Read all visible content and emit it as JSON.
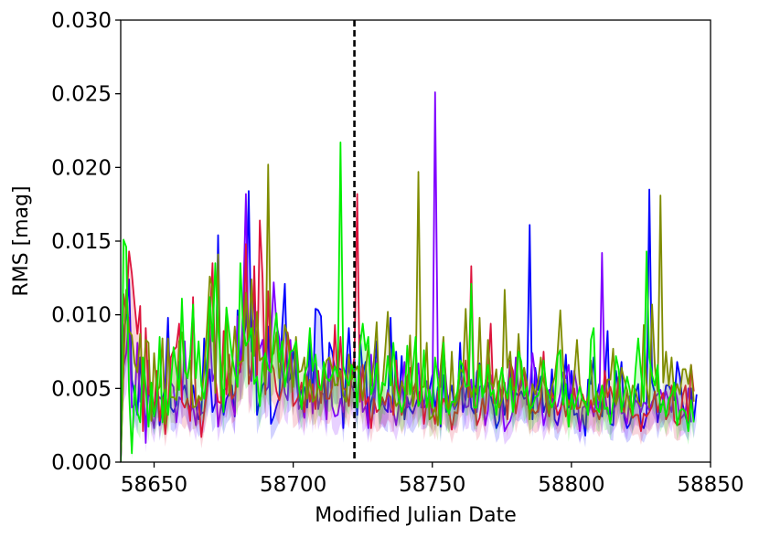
{
  "chart_data": {
    "type": "line",
    "title": "",
    "xlabel": "Modified Julian Date",
    "ylabel": "RMS [mag]",
    "xlim": [
      58638,
      58850
    ],
    "ylim": [
      0.0,
      0.03
    ],
    "xticks": [
      58650,
      58700,
      58750,
      58800,
      58850
    ],
    "xtick_labels": [
      "58650",
      "58700",
      "58750",
      "58800",
      "58850"
    ],
    "yticks": [
      0.0,
      0.005,
      0.01,
      0.015,
      0.02,
      0.025,
      0.03
    ],
    "ytick_labels": [
      "0.000",
      "0.005",
      "0.010",
      "0.015",
      "0.020",
      "0.025",
      "0.030"
    ],
    "grid": false,
    "legend": "none",
    "vline": {
      "x": 58722,
      "style": "dashed",
      "color": "#000000"
    },
    "x_step": 1,
    "series": [
      {
        "color": "#0000ff",
        "values": [
          0.0,
          0.0087,
          0.0099,
          0.0124,
          0.0056,
          0.0045,
          0.0032,
          0.0071,
          0.004,
          0.0026,
          0.0049,
          0.0041,
          0.0031,
          0.0058,
          0.0025,
          0.0041,
          0.0053,
          0.0098,
          0.0037,
          0.0034,
          0.0039,
          0.0068,
          0.0048,
          0.0052,
          0.0043,
          0.0033,
          0.0052,
          0.0039,
          0.0029,
          0.0034,
          0.0084,
          0.0049,
          0.0063,
          0.0034,
          0.004,
          0.0154,
          0.0044,
          0.0032,
          0.0043,
          0.0047,
          0.0052,
          0.0031,
          0.0103,
          0.0065,
          0.0082,
          0.0093,
          0.0184,
          0.0075,
          0.0124,
          0.0032,
          0.0043,
          0.0052,
          0.0055,
          0.0092,
          0.0026,
          0.0031,
          0.0038,
          0.0044,
          0.0091,
          0.0121,
          0.0054,
          0.0057,
          0.0076,
          0.0059,
          0.0041,
          0.0049,
          0.0051,
          0.0037,
          0.0083,
          0.0041,
          0.0104,
          0.0103,
          0.0099,
          0.0053,
          0.0033,
          0.0081,
          0.0075,
          0.0063,
          0.0064,
          0.0063,
          0.0023,
          0.0063,
          0.0091,
          0.0057,
          0.007,
          0.0032,
          0.0086,
          0.0059,
          0.0068,
          0.0026,
          0.0041,
          0.0048,
          0.0082,
          0.0043,
          0.0042,
          0.0036,
          0.0034,
          0.0098,
          0.0034,
          0.0075,
          0.0039,
          0.0072,
          0.0029,
          0.0044,
          0.0036,
          0.0033,
          0.0039,
          0.0045,
          0.0051,
          0.0037,
          0.0039,
          0.0049,
          0.0059,
          0.0035,
          0.0051,
          0.0024,
          0.0059,
          0.0034,
          0.0044,
          0.0052,
          0.0036,
          0.004,
          0.0081,
          0.0034,
          0.0043,
          0.0064,
          0.0037,
          0.0033,
          0.0061,
          0.0067,
          0.0049,
          0.0048,
          0.0054,
          0.0045,
          0.0037,
          0.0023,
          0.0028,
          0.0049,
          0.0032,
          0.0046,
          0.0069,
          0.0038,
          0.0047,
          0.0045,
          0.0048,
          0.0043,
          0.0044,
          0.0161,
          0.0029,
          0.0064,
          0.0049,
          0.0058,
          0.0034,
          0.0041,
          0.0035,
          0.0063,
          0.0029,
          0.0025,
          0.0035,
          0.0046,
          0.0073,
          0.0037,
          0.0062,
          0.0032,
          0.0033,
          0.0023,
          0.0032,
          0.0018,
          0.0056,
          0.0053,
          0.0071,
          0.0043,
          0.0053,
          0.0031,
          0.0056,
          0.0089,
          0.0026,
          0.0025,
          0.0062,
          0.0048,
          0.0068,
          0.003,
          0.0023,
          0.0026,
          0.0034,
          0.0046,
          0.0053,
          0.0026,
          0.0023,
          0.0031,
          0.0185,
          0.0054,
          0.0047,
          0.0027,
          0.0039,
          0.0039,
          0.0052,
          0.0052,
          0.0048,
          0.0042,
          0.0068,
          0.0058,
          0.0039,
          0.0031,
          0.0025,
          0.005,
          0.0028,
          0.0046
        ]
      },
      {
        "color": "#7f00ff",
        "values": [
          0.0,
          0.0065,
          0.0074,
          0.0098,
          0.0037,
          0.0039,
          0.0081,
          0.0041,
          0.0064,
          0.0013,
          0.0069,
          0.0034,
          0.0023,
          0.0041,
          0.0044,
          0.0042,
          0.0041,
          0.0084,
          0.0054,
          0.0051,
          0.0027,
          0.0044,
          0.0042,
          0.0082,
          0.004,
          0.0034,
          0.0038,
          0.0025,
          0.0044,
          0.0033,
          0.0034,
          0.0058,
          0.0092,
          0.0055,
          0.0062,
          0.0024,
          0.0038,
          0.0049,
          0.005,
          0.006,
          0.0041,
          0.0032,
          0.0099,
          0.0061,
          0.0105,
          0.0182,
          0.0066,
          0.0055,
          0.0096,
          0.0085,
          0.0077,
          0.0083,
          0.0048,
          0.0051,
          0.0085,
          0.0122,
          0.0094,
          0.0084,
          0.0062,
          0.0047,
          0.0042,
          0.0083,
          0.0051,
          0.0076,
          0.0036,
          0.004,
          0.003,
          0.0059,
          0.0066,
          0.0033,
          0.0067,
          0.0036,
          0.0047,
          0.0046,
          0.0029,
          0.0071,
          0.0038,
          0.0031,
          0.0032,
          0.0043,
          0.0034,
          0.0048,
          0.0066,
          0.0052,
          0.0047,
          0.0042,
          0.0065,
          0.0034,
          0.0038,
          0.0023,
          0.0073,
          0.0033,
          0.0068,
          0.0037,
          0.004,
          0.0038,
          0.0049,
          0.0034,
          0.0035,
          0.0025,
          0.0039,
          0.0048,
          0.0068,
          0.0037,
          0.0039,
          0.0046,
          0.0049,
          0.0067,
          0.0037,
          0.0037,
          0.0055,
          0.0042,
          0.0032,
          0.0251,
          0.0064,
          0.0051,
          0.0079,
          0.0054,
          0.0034,
          0.004,
          0.0036,
          0.0046,
          0.0058,
          0.0054,
          0.0037,
          0.0038,
          0.0056,
          0.0036,
          0.0034,
          0.0051,
          0.0052,
          0.0025,
          0.0035,
          0.0059,
          0.0044,
          0.004,
          0.0054,
          0.004,
          0.0021,
          0.0025,
          0.0028,
          0.0035,
          0.0071,
          0.0048,
          0.0052,
          0.0064,
          0.0039,
          0.0049,
          0.0074,
          0.0059,
          0.0034,
          0.0044,
          0.0025,
          0.0034,
          0.0049,
          0.0043,
          0.0036,
          0.0038,
          0.0047,
          0.0061,
          0.0057,
          0.0066,
          0.0042,
          0.0062,
          0.0051,
          0.0021,
          0.0037,
          0.0038,
          0.0033,
          0.0039,
          0.0031,
          0.0045,
          0.0035,
          0.0142,
          0.0047,
          0.0033,
          0.0031,
          0.0035,
          0.0039,
          0.0049,
          0.0033,
          0.0034,
          0.0026,
          0.0045,
          0.0035,
          0.0042,
          0.004,
          0.0034,
          0.0041,
          0.0039,
          0.0035,
          0.0041,
          0.0044,
          0.0046,
          0.0049,
          0.0041,
          0.0048,
          0.0041,
          0.0034,
          0.0051,
          0.0043,
          0.0029,
          0.0031,
          0.0034,
          0.005,
          0.0027
        ]
      },
      {
        "color": "#dc143c",
        "values": [
          0.0,
          0.0114,
          0.0101,
          0.0143,
          0.0128,
          0.0107,
          0.0087,
          0.0106,
          0.0021,
          0.0091,
          0.0046,
          0.0047,
          0.0036,
          0.0062,
          0.0028,
          0.0044,
          0.0019,
          0.0038,
          0.0071,
          0.0076,
          0.0078,
          0.0094,
          0.0041,
          0.0037,
          0.0043,
          0.0028,
          0.0112,
          0.0039,
          0.0043,
          0.0017,
          0.0034,
          0.0048,
          0.0093,
          0.0135,
          0.0058,
          0.0041,
          0.004,
          0.0089,
          0.0046,
          0.0073,
          0.0043,
          0.0046,
          0.0058,
          0.0064,
          0.0074,
          0.0148,
          0.0053,
          0.0062,
          0.0133,
          0.0059,
          0.0164,
          0.0125,
          0.0046,
          0.0116,
          0.0068,
          0.0063,
          0.0048,
          0.0042,
          0.005,
          0.0064,
          0.0088,
          0.0075,
          0.0038,
          0.0041,
          0.0045,
          0.0054,
          0.0034,
          0.0058,
          0.0041,
          0.0053,
          0.0036,
          0.0062,
          0.004,
          0.0065,
          0.0043,
          0.0043,
          0.0051,
          0.0093,
          0.0052,
          0.0085,
          0.005,
          0.0049,
          0.0038,
          0.006,
          0.0071,
          0.0182,
          0.0041,
          0.0066,
          0.0039,
          0.0044,
          0.0023,
          0.0043,
          0.0034,
          0.0036,
          0.0044,
          0.0039,
          0.0047,
          0.0044,
          0.0032,
          0.0069,
          0.0045,
          0.0032,
          0.0039,
          0.0058,
          0.0064,
          0.0048,
          0.0054,
          0.0038,
          0.0055,
          0.0026,
          0.0042,
          0.004,
          0.0036,
          0.0026,
          0.0048,
          0.0035,
          0.0043,
          0.0039,
          0.0036,
          0.0022,
          0.0034,
          0.0033,
          0.0049,
          0.0053,
          0.0069,
          0.0044,
          0.0133,
          0.0047,
          0.0025,
          0.003,
          0.0043,
          0.0033,
          0.0061,
          0.0094,
          0.004,
          0.0043,
          0.0055,
          0.0042,
          0.0054,
          0.0029,
          0.0068,
          0.0062,
          0.0033,
          0.0046,
          0.0059,
          0.0061,
          0.0045,
          0.0032,
          0.0036,
          0.0033,
          0.0035,
          0.0044,
          0.0075,
          0.0038,
          0.0031,
          0.0047,
          0.0042,
          0.0032,
          0.0036,
          0.0043,
          0.0031,
          0.0042,
          0.0036,
          0.005,
          0.0036,
          0.0037,
          0.0046,
          0.0039,
          0.0036,
          0.0042,
          0.0034,
          0.0035,
          0.0029,
          0.0036,
          0.0062,
          0.0044,
          0.0051,
          0.0043,
          0.004,
          0.0058,
          0.0039,
          0.0034,
          0.0049,
          0.0037,
          0.003,
          0.0032,
          0.0032,
          0.0021,
          0.0033,
          0.0031,
          0.0034,
          0.0038,
          0.0048,
          0.0034,
          0.0043,
          0.0047,
          0.0029,
          0.0033,
          0.0052,
          0.0028,
          0.0025,
          0.0026,
          0.0045,
          0.0052,
          0.0028,
          0.0066,
          0.0048
        ]
      },
      {
        "color": "#7f8c00",
        "values": [
          0.0,
          0.0064,
          0.0117,
          0.0089,
          0.0086,
          0.0067,
          0.0061,
          0.0087,
          0.0053,
          0.0083,
          0.0081,
          0.0028,
          0.0074,
          0.0048,
          0.0051,
          0.0084,
          0.0026,
          0.0084,
          0.0044,
          0.0044,
          0.0042,
          0.0082,
          0.0088,
          0.0064,
          0.0057,
          0.0069,
          0.0037,
          0.0038,
          0.0045,
          0.0042,
          0.0062,
          0.0091,
          0.0126,
          0.0118,
          0.0047,
          0.0141,
          0.0045,
          0.0071,
          0.0104,
          0.0045,
          0.0065,
          0.0092,
          0.0065,
          0.0068,
          0.0069,
          0.0115,
          0.0082,
          0.0124,
          0.0072,
          0.0102,
          0.0069,
          0.0071,
          0.0053,
          0.0202,
          0.0071,
          0.0074,
          0.0088,
          0.0057,
          0.0072,
          0.0093,
          0.0086,
          0.0065,
          0.0051,
          0.0085,
          0.0061,
          0.0062,
          0.0071,
          0.0043,
          0.0056,
          0.0041,
          0.0043,
          0.0051,
          0.0051,
          0.0059,
          0.0069,
          0.0071,
          0.0063,
          0.0052,
          0.0053,
          0.0062,
          0.0045,
          0.0041,
          0.0073,
          0.0056,
          0.0061,
          0.0065,
          0.0057,
          0.0042,
          0.0062,
          0.0079,
          0.0052,
          0.0069,
          0.0095,
          0.0042,
          0.0049,
          0.0074,
          0.0102,
          0.0063,
          0.0047,
          0.0038,
          0.0041,
          0.0055,
          0.0048,
          0.0046,
          0.0086,
          0.0038,
          0.0051,
          0.0197,
          0.0051,
          0.0051,
          0.0081,
          0.0029,
          0.0031,
          0.0037,
          0.0025,
          0.0065,
          0.0085,
          0.0049,
          0.0032,
          0.0075,
          0.0038,
          0.0042,
          0.0063,
          0.0061,
          0.0104,
          0.0061,
          0.0044,
          0.0052,
          0.0046,
          0.0098,
          0.0046,
          0.0048,
          0.0083,
          0.0054,
          0.0051,
          0.0063,
          0.0037,
          0.0042,
          0.0117,
          0.0064,
          0.0075,
          0.0049,
          0.0052,
          0.0087,
          0.0056,
          0.0064,
          0.0054,
          0.0029,
          0.0053,
          0.0046,
          0.0054,
          0.0071,
          0.0055,
          0.0049,
          0.0033,
          0.0051,
          0.0058,
          0.0074,
          0.0103,
          0.0067,
          0.0047,
          0.0039,
          0.0039,
          0.0058,
          0.0083,
          0.0053,
          0.0043,
          0.0038,
          0.0045,
          0.0069,
          0.0039,
          0.0048,
          0.0042,
          0.0052,
          0.0044,
          0.0056,
          0.0056,
          0.0077,
          0.0039,
          0.0046,
          0.0064,
          0.0056,
          0.0049,
          0.0037,
          0.0052,
          0.0049,
          0.0041,
          0.0038,
          0.0093,
          0.0053,
          0.0037,
          0.0107,
          0.0065,
          0.0048,
          0.0181,
          0.0054,
          0.0075,
          0.0052,
          0.0071,
          0.0045,
          0.0053,
          0.0046,
          0.0063,
          0.0063,
          0.0053,
          0.0066,
          0.0041
        ]
      },
      {
        "color": "#00ee00",
        "values": [
          0.0,
          0.0151,
          0.0146,
          0.0048,
          0.0006,
          0.0052,
          0.0034,
          0.0027,
          0.0071,
          0.0051,
          0.0024,
          0.0054,
          0.0031,
          0.0042,
          0.0085,
          0.0027,
          0.0049,
          0.0032,
          0.0053,
          0.0078,
          0.0063,
          0.0049,
          0.0111,
          0.0062,
          0.0057,
          0.0073,
          0.0107,
          0.0057,
          0.0082,
          0.0052,
          0.0043,
          0.0062,
          0.0112,
          0.0082,
          0.0135,
          0.0092,
          0.0066,
          0.0034,
          0.0105,
          0.0088,
          0.0072,
          0.0061,
          0.0051,
          0.0135,
          0.0092,
          0.0079,
          0.0083,
          0.0091,
          0.0053,
          0.0058,
          0.0038,
          0.0067,
          0.0074,
          0.0063,
          0.0061,
          0.0085,
          0.0101,
          0.0068,
          0.0082,
          0.0051,
          0.0064,
          0.0075,
          0.0076,
          0.0082,
          0.0052,
          0.0036,
          0.0059,
          0.0065,
          0.0091,
          0.0062,
          0.0073,
          0.0052,
          0.0049,
          0.0068,
          0.0057,
          0.0055,
          0.0059,
          0.0065,
          0.0058,
          0.0217,
          0.0065,
          0.0057,
          0.0052,
          0.0066,
          0.0061,
          0.0037,
          0.0079,
          0.0094,
          0.0076,
          0.0085,
          0.0046,
          0.0052,
          0.0067,
          0.0036,
          0.0054,
          0.0052,
          0.0072,
          0.0052,
          0.0081,
          0.0053,
          0.0043,
          0.0034,
          0.0042,
          0.0079,
          0.0046,
          0.0063,
          0.0085,
          0.0038,
          0.0043,
          0.0076,
          0.0037,
          0.0049,
          0.0037,
          0.0071,
          0.0056,
          0.0026,
          0.0081,
          0.0037,
          0.0033,
          0.0041,
          0.0041,
          0.0048,
          0.0069,
          0.0065,
          0.0051,
          0.0052,
          0.0121,
          0.0037,
          0.0037,
          0.0066,
          0.0044,
          0.0053,
          0.0066,
          0.0045,
          0.0049,
          0.0032,
          0.0052,
          0.0064,
          0.0051,
          0.0043,
          0.0057,
          0.0034,
          0.0049,
          0.0075,
          0.0068,
          0.0045,
          0.0051,
          0.0036,
          0.0038,
          0.0044,
          0.0045,
          0.0052,
          0.0069,
          0.0051,
          0.0045,
          0.0037,
          0.0042,
          0.0072,
          0.0076,
          0.0039,
          0.0053,
          0.0024,
          0.0046,
          0.0036,
          0.0043,
          0.0051,
          0.0042,
          0.0041,
          0.0032,
          0.0083,
          0.0091,
          0.0037,
          0.0034,
          0.0052,
          0.0036,
          0.0037,
          0.0026,
          0.0041,
          0.0072,
          0.0063,
          0.0034,
          0.0047,
          0.0058,
          0.0049,
          0.0032,
          0.0062,
          0.0084,
          0.0061,
          0.0041,
          0.0143,
          0.0071,
          0.0059,
          0.0052,
          0.0066,
          0.0034,
          0.0042,
          0.0031,
          0.0043,
          0.0046,
          0.0054,
          0.0025,
          0.0035,
          0.0036,
          0.0034,
          0.0021,
          0.0042,
          0.0027
        ]
      }
    ]
  }
}
